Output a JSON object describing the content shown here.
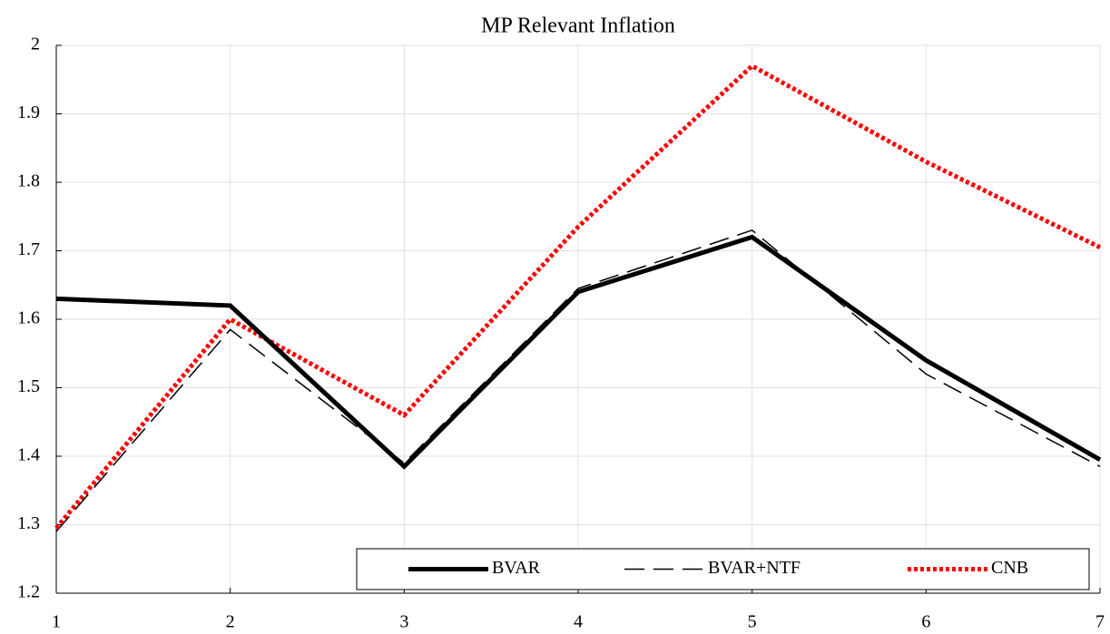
{
  "chart_data": {
    "type": "line",
    "title": "MP Relevant Inflation",
    "x": [
      1,
      2,
      3,
      4,
      5,
      6,
      7
    ],
    "series": [
      {
        "name": "BVAR",
        "color": "#000000",
        "values": [
          1.63,
          1.62,
          1.385,
          1.64,
          1.72,
          1.54,
          1.395
        ]
      },
      {
        "name": "BVAR+NTF",
        "color": "#000000",
        "values": [
          1.29,
          1.585,
          1.39,
          1.645,
          1.73,
          1.52,
          1.385
        ]
      },
      {
        "name": "CNB",
        "color": "#ff0000",
        "values": [
          1.295,
          1.6,
          1.46,
          1.735,
          1.97,
          1.83,
          1.705
        ]
      }
    ],
    "xlim": [
      1,
      7
    ],
    "xticks": [
      1,
      2,
      3,
      4,
      5,
      6,
      7
    ],
    "ylim": [
      1.2,
      2
    ],
    "yticks": [
      1.2,
      1.3,
      1.4,
      1.5,
      1.6,
      1.7,
      1.8,
      1.9,
      2
    ],
    "grid": true,
    "legend": "lower right"
  }
}
